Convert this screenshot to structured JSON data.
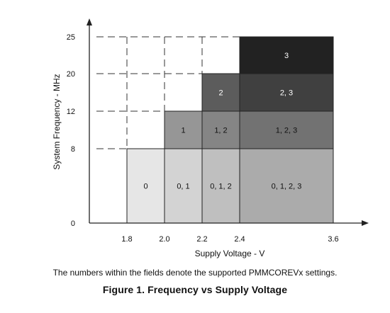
{
  "chart_data": {
    "type": "step-region",
    "xlabel": "Supply Voltage - V",
    "ylabel": "System Frequency - MHz",
    "x_ticks": [
      1.8,
      2.0,
      2.2,
      2.4,
      3.6
    ],
    "x_tick_labels": [
      "1.8",
      "2.0",
      "2.2",
      "2.4",
      "3.6"
    ],
    "y_ticks": [
      0,
      8,
      12,
      20,
      25
    ],
    "y_tick_labels": [
      "0",
      "8",
      "12",
      "20",
      "25"
    ],
    "regions": [
      {
        "label": "0",
        "x": [
          1.8,
          2.0
        ],
        "y": [
          0,
          8
        ],
        "color": "#e6e6e6"
      },
      {
        "label": "0, 1",
        "x": [
          2.0,
          2.2
        ],
        "y": [
          0,
          8
        ],
        "color": "#d3d3d3"
      },
      {
        "label": "0, 1, 2",
        "x": [
          2.2,
          2.4
        ],
        "y": [
          0,
          8
        ],
        "color": "#bfbfbf"
      },
      {
        "label": "0, 1, 2, 3",
        "x": [
          2.4,
          3.6
        ],
        "y": [
          0,
          8
        ],
        "color": "#ababab"
      },
      {
        "label": "1",
        "x": [
          2.0,
          2.2
        ],
        "y": [
          8,
          12
        ],
        "color": "#969696"
      },
      {
        "label": "1, 2",
        "x": [
          2.2,
          2.4
        ],
        "y": [
          8,
          12
        ],
        "color": "#858585"
      },
      {
        "label": "1, 2, 3",
        "x": [
          2.4,
          3.6
        ],
        "y": [
          8,
          12
        ],
        "color": "#727272"
      },
      {
        "label": "2",
        "x": [
          2.2,
          2.4
        ],
        "y": [
          12,
          20
        ],
        "color": "#5c5c5c"
      },
      {
        "label": "2, 3",
        "x": [
          2.4,
          3.6
        ],
        "y": [
          12,
          20
        ],
        "color": "#404040"
      },
      {
        "label": "3",
        "x": [
          2.4,
          3.6
        ],
        "y": [
          20,
          25
        ],
        "color": "#222222"
      }
    ],
    "dashed_guides": [
      {
        "y": 25,
        "x_end": 2.4
      },
      {
        "y": 20,
        "x_end": 2.2
      },
      {
        "y": 12,
        "x_end": 2.0
      },
      {
        "y": 8,
        "x_end": 1.8
      },
      {
        "x": 1.8,
        "y_end": 8
      },
      {
        "x": 2.0,
        "y_end": 12
      },
      {
        "x": 2.2,
        "y_end": 20
      }
    ]
  },
  "note": "The numbers within the fields denote the supported PMMCOREVx settings.",
  "figure_title": "Figure 1.  Frequency vs Supply Voltage",
  "colors": {
    "axis": "#222222",
    "light_text": "#111111",
    "dark_text": "#ffffff"
  }
}
